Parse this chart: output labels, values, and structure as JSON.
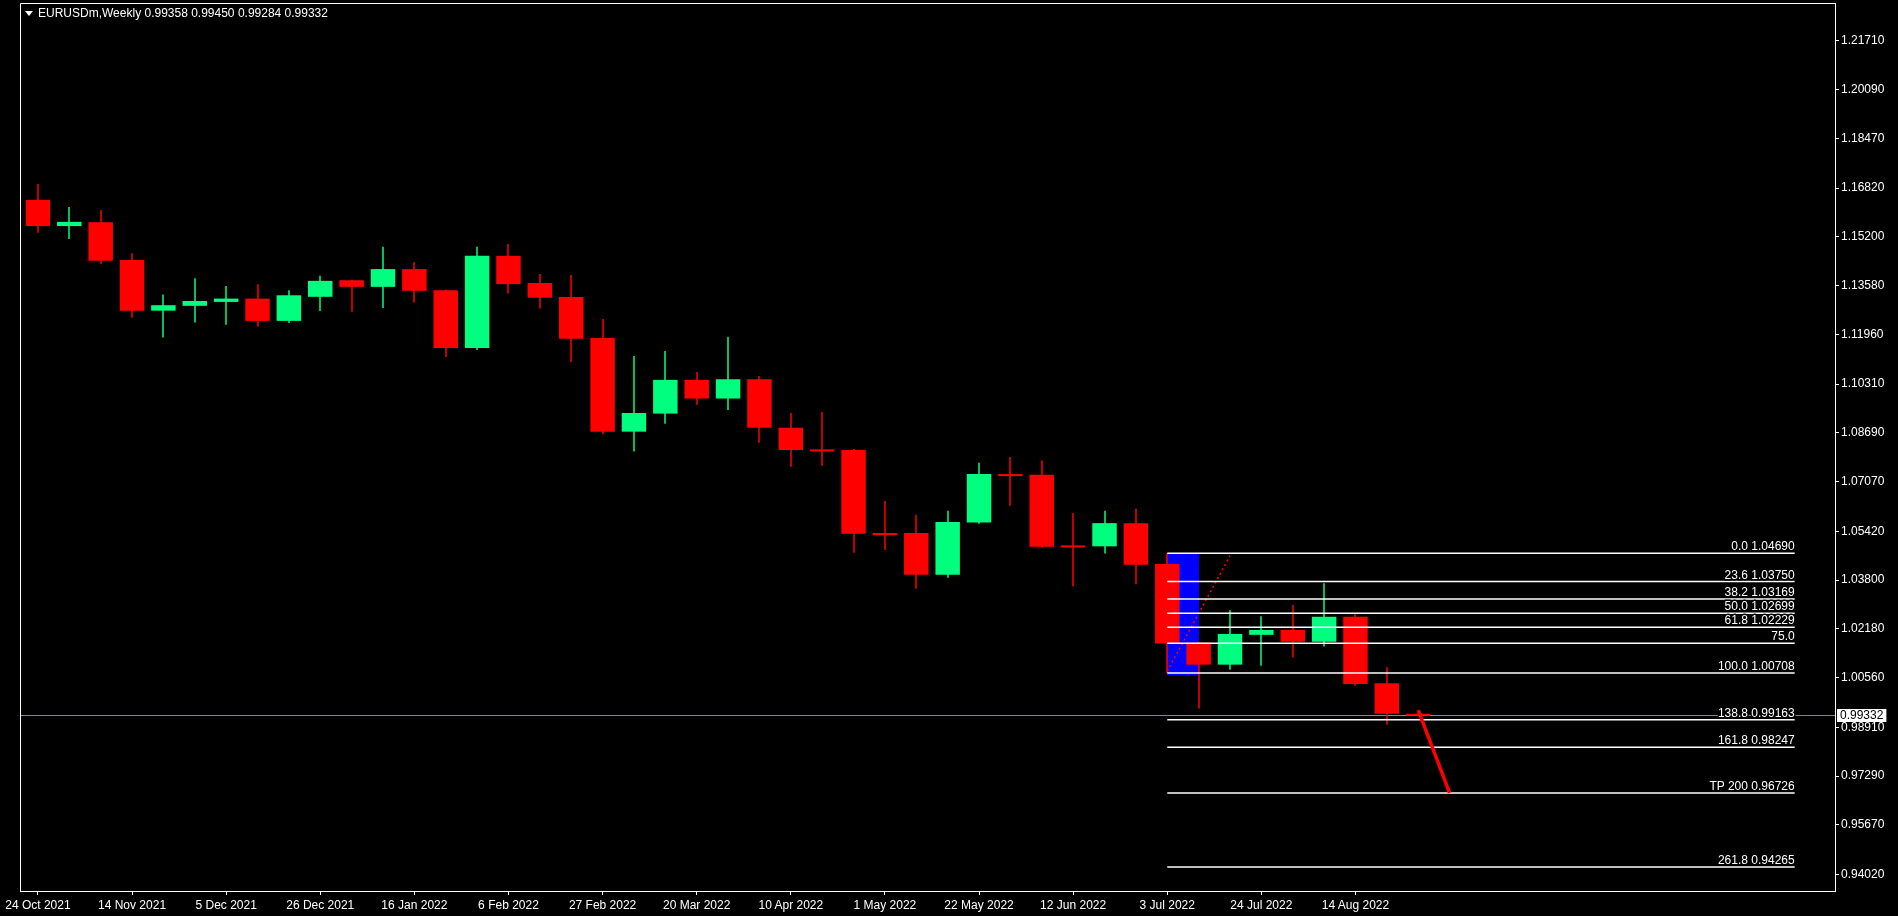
{
  "chart_data": {
    "type": "candlestick",
    "title": "EURUSDm,Weekly 0.99358 0.99450 0.99284 0.99332",
    "xlim": [
      "2021-10-20",
      "2022-11-29"
    ],
    "xticks": [
      {
        "value": "2021-10-24",
        "label": "24 Oct 2021"
      },
      {
        "value": "2021-11-14",
        "label": "14 Nov 2021"
      },
      {
        "value": "2021-12-05",
        "label": "5 Dec 2021"
      },
      {
        "value": "2021-12-26",
        "label": "26 Dec 2021"
      },
      {
        "value": "2022-01-16",
        "label": "16 Jan 2022"
      },
      {
        "value": "2022-02-06",
        "label": "6 Feb 2022"
      },
      {
        "value": "2022-02-27",
        "label": "27 Feb 2022"
      },
      {
        "value": "2022-03-20",
        "label": "20 Mar 2022"
      },
      {
        "value": "2022-04-10",
        "label": "10 Apr 2022"
      },
      {
        "value": "2022-05-01",
        "label": "1 May 2022"
      },
      {
        "value": "2022-05-22",
        "label": "22 May 2022"
      },
      {
        "value": "2022-06-12",
        "label": "12 Jun 2022"
      },
      {
        "value": "2022-07-03",
        "label": "3 Jul 2022"
      },
      {
        "value": "2022-07-24",
        "label": "24 Jul 2022"
      },
      {
        "value": "2022-08-14",
        "label": "14 Aug 2022"
      }
    ],
    "ylim": [
      0.9347,
      1.2297
    ],
    "yticks": [
      {
        "value": 1.2171,
        "label": "1.21710"
      },
      {
        "value": 1.2009,
        "label": "1.20090"
      },
      {
        "value": 1.1847,
        "label": "1.18470"
      },
      {
        "value": 1.1682,
        "label": "1.16820"
      },
      {
        "value": 1.152,
        "label": "1.15200"
      },
      {
        "value": 1.1358,
        "label": "1.13580"
      },
      {
        "value": 1.1196,
        "label": "1.11960"
      },
      {
        "value": 1.1031,
        "label": "1.10310"
      },
      {
        "value": 1.0869,
        "label": "1.08690"
      },
      {
        "value": 1.0707,
        "label": "1.07070"
      },
      {
        "value": 1.0542,
        "label": "1.05420"
      },
      {
        "value": 1.038,
        "label": "1.03800"
      },
      {
        "value": 1.0218,
        "label": "1.02180"
      },
      {
        "value": 1.0056,
        "label": "1.00560"
      },
      {
        "value": 0.9891,
        "label": "0.98910"
      },
      {
        "value": 0.9729,
        "label": "0.97290"
      },
      {
        "value": 0.9567,
        "label": "0.95670"
      },
      {
        "value": 0.9402,
        "label": "0.94020"
      }
    ],
    "series": [
      {
        "type": "candlestick",
        "x": [
          "2021-10-24",
          "2021-10-31",
          "2021-11-07",
          "2021-11-14",
          "2021-11-21",
          "2021-11-28",
          "2021-12-05",
          "2021-12-12",
          "2021-12-19",
          "2021-12-26",
          "2022-01-02",
          "2022-01-09",
          "2022-01-16",
          "2022-01-23",
          "2022-01-30",
          "2022-02-06",
          "2022-02-13",
          "2022-02-20",
          "2022-02-27",
          "2022-03-06",
          "2022-03-13",
          "2022-03-20",
          "2022-03-27",
          "2022-04-03",
          "2022-04-10",
          "2022-04-17",
          "2022-04-24",
          "2022-05-01",
          "2022-05-08",
          "2022-05-15",
          "2022-05-22",
          "2022-05-29",
          "2022-06-05",
          "2022-06-12",
          "2022-06-19",
          "2022-06-26",
          "2022-07-03",
          "2022-07-10",
          "2022-07-17",
          "2022-07-24",
          "2022-07-31",
          "2022-08-07",
          "2022-08-14",
          "2022-08-21",
          "2022-08-28"
        ],
        "ohlc": [
          [
            1.1643,
            1.1696,
            1.1534,
            1.1556
          ],
          [
            1.1556,
            1.1619,
            1.1513,
            1.157
          ],
          [
            1.1569,
            1.1609,
            1.143,
            1.1441
          ],
          [
            1.1443,
            1.1466,
            1.1251,
            1.1275
          ],
          [
            1.1275,
            1.1329,
            1.1186,
            1.1293
          ],
          [
            1.1291,
            1.1383,
            1.1236,
            1.1307
          ],
          [
            1.1304,
            1.1357,
            1.1228,
            1.1315
          ],
          [
            1.1315,
            1.1363,
            1.1222,
            1.1241
          ],
          [
            1.1241,
            1.1343,
            1.1234,
            1.1326
          ],
          [
            1.1321,
            1.1391,
            1.1274,
            1.1374
          ],
          [
            1.1376,
            1.1378,
            1.1271,
            1.1354
          ],
          [
            1.1354,
            1.1487,
            1.1284,
            1.1413
          ],
          [
            1.1413,
            1.1437,
            1.1301,
            1.1341
          ],
          [
            1.1343,
            1.1345,
            1.1121,
            1.1151
          ],
          [
            1.1151,
            1.1487,
            1.1144,
            1.1457
          ],
          [
            1.1457,
            1.1496,
            1.1332,
            1.1363
          ],
          [
            1.1367,
            1.1397,
            1.1282,
            1.1318
          ],
          [
            1.132,
            1.1393,
            1.1104,
            1.1182
          ],
          [
            1.1184,
            1.1247,
            1.0864,
            1.0873
          ],
          [
            1.0873,
            1.1124,
            1.0807,
            1.0935
          ],
          [
            1.0933,
            1.1141,
            1.0899,
            1.1045
          ],
          [
            1.1045,
            1.1071,
            1.0962,
            1.0983
          ],
          [
            1.0983,
            1.1188,
            1.0945,
            1.1047
          ],
          [
            1.1047,
            1.1058,
            1.0836,
            1.0886
          ],
          [
            1.0886,
            1.0935,
            1.0756,
            1.0812
          ],
          [
            1.0814,
            1.0938,
            1.076,
            1.0811
          ],
          [
            1.0812,
            1.0815,
            1.0471,
            1.0534
          ],
          [
            1.0536,
            1.0643,
            1.048,
            1.0534
          ],
          [
            1.0536,
            1.0597,
            1.0351,
            1.0398
          ],
          [
            1.0398,
            1.061,
            1.0388,
            1.0573
          ],
          [
            1.0571,
            1.077,
            1.0567,
            1.0732
          ],
          [
            1.0732,
            1.0789,
            1.0627,
            1.073
          ],
          [
            1.073,
            1.0777,
            1.0487,
            1.0491
          ],
          [
            1.0495,
            1.0603,
            1.0359,
            1.0493
          ],
          [
            1.0492,
            1.061,
            1.0468,
            1.0569
          ],
          [
            1.0569,
            1.0617,
            1.0366,
            1.0431
          ],
          [
            1.0433,
            1.0469,
            1.00708,
            1.0169
          ],
          [
            1.0172,
            1.0175,
            0.9953,
            1.0099
          ],
          [
            1.0099,
            1.028,
            1.0082,
            1.0201
          ],
          [
            1.0198,
            1.026,
            1.0095,
            1.0214
          ],
          [
            1.0214,
            1.0297,
            1.0123,
            1.0175
          ],
          [
            1.0175,
            1.0369,
            1.0159,
            1.0258
          ],
          [
            1.0258,
            1.0271,
            1.0029,
            1.0035
          ],
          [
            1.0037,
            1.009,
            0.9899,
            0.99358
          ],
          [
            0.99358,
            0.9945,
            0.99284,
            0.99332
          ]
        ],
        "colors": [
          "#ff0000",
          "#00ff7f",
          "#ff0000",
          "#ff0000",
          "#00ff7f",
          "#00ff7f",
          "#00ff7f",
          "#ff0000",
          "#00ff7f",
          "#00ff7f",
          "#ff0000",
          "#00ff7f",
          "#ff0000",
          "#ff0000",
          "#00ff7f",
          "#ff0000",
          "#ff0000",
          "#ff0000",
          "#ff0000",
          "#00ff7f",
          "#00ff7f",
          "#ff0000",
          "#00ff7f",
          "#ff0000",
          "#ff0000",
          "#ff0000",
          "#ff0000",
          "#ff0000",
          "#ff0000",
          "#00ff7f",
          "#00ff7f",
          "#ff0000",
          "#ff0000",
          "#ff0000",
          "#00ff7f",
          "#ff0000",
          "#ff0000",
          "#ff0000",
          "#00ff7f",
          "#00ff7f",
          "#ff0000",
          "#00ff7f",
          "#ff0000",
          "#ff0000",
          "#ff0000"
        ]
      },
      {
        "type": "bar",
        "color": "#0000ff",
        "x": [
          "2022-07-06T12:00"
        ],
        "values": [
          0.0403
        ],
        "base": [
          1.0064
        ]
      },
      {
        "type": "line",
        "color": "#ff0000",
        "line_style": "dotted",
        "x": [
          "2022-07-03",
          "2022-07-17"
        ],
        "values": [
          1.0077,
          1.0461
        ]
      },
      {
        "type": "line",
        "name": "0.0 1.04690",
        "color": "#ffffff",
        "x": [
          "2022-07-03",
          "2022-11-20"
        ],
        "values": [
          1.0469,
          1.0469
        ]
      },
      {
        "type": "line",
        "name": "23.6 1.03750",
        "color": "#ffffff",
        "x": [
          "2022-07-03",
          "2022-11-20"
        ],
        "values": [
          1.0375,
          1.0375
        ]
      },
      {
        "type": "line",
        "name": "38.2 1.03169",
        "color": "#ffffff",
        "x": [
          "2022-07-03",
          "2022-11-20"
        ],
        "values": [
          1.03169,
          1.03169
        ]
      },
      {
        "type": "line",
        "name": "50.0 1.02699",
        "color": "#ffffff",
        "x": [
          "2022-07-03",
          "2022-11-20"
        ],
        "values": [
          1.02699,
          1.02699
        ]
      },
      {
        "type": "line",
        "name": "61.8 1.02229",
        "color": "#ffffff",
        "x": [
          "2022-07-03",
          "2022-11-20"
        ],
        "values": [
          1.02229,
          1.02229
        ]
      },
      {
        "type": "line",
        "name": "75.0",
        "color": "#ffffff",
        "x": [
          "2022-07-03",
          "2022-11-20"
        ],
        "values": [
          1.017,
          1.017
        ]
      },
      {
        "type": "line",
        "name": "100.0 1.00708",
        "color": "#ffffff",
        "x": [
          "2022-07-03",
          "2022-11-20"
        ],
        "values": [
          1.00708,
          1.00708
        ]
      },
      {
        "type": "line",
        "name": "138.8 0.99163",
        "color": "#ffffff",
        "x": [
          "2022-07-03",
          "2022-11-20"
        ],
        "values": [
          0.99163,
          0.99163
        ]
      },
      {
        "type": "line",
        "name": "161.8 0.98247",
        "color": "#ffffff",
        "x": [
          "2022-07-03",
          "2022-11-20"
        ],
        "values": [
          0.98247,
          0.98247
        ]
      },
      {
        "type": "line",
        "name": "TP 200 0.96726",
        "color": "#ffffff",
        "x": [
          "2022-07-03",
          "2022-11-20"
        ],
        "values": [
          0.96726,
          0.96726
        ]
      },
      {
        "type": "line",
        "name": "261.8 0.94265",
        "color": "#ffffff",
        "x": [
          "2022-07-03",
          "2022-11-20"
        ],
        "values": [
          0.94265,
          0.94265
        ]
      },
      {
        "type": "line",
        "color": "#ff0000",
        "x": [
          "2022-08-28",
          "2022-09-04"
        ],
        "values": [
          0.9948,
          0.9673
        ]
      }
    ],
    "ref_lines": [
      {
        "axis": "y",
        "value": 0.99332,
        "label": "0.99332",
        "color": "#778899"
      }
    ]
  }
}
